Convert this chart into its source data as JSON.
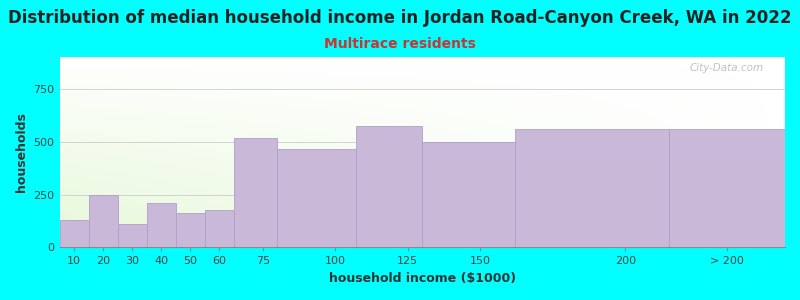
{
  "title": "Distribution of median household income in Jordan Road-Canyon Creek, WA in 2022",
  "subtitle": "Multirace residents",
  "xlabel": "household income ($1000)",
  "ylabel": "households",
  "background_color": "#00FFFF",
  "bar_color": "#c9b8d8",
  "bar_edge_color": "#b0a0c8",
  "categories": [
    "10",
    "20",
    "30",
    "40",
    "50",
    "60",
    "75",
    "100",
    "125",
    "150",
    "200",
    "> 200"
  ],
  "x_left": [
    5,
    15,
    25,
    35,
    45,
    55,
    65,
    80,
    107,
    130,
    162,
    215
  ],
  "x_right": [
    15,
    25,
    35,
    45,
    55,
    65,
    80,
    107,
    130,
    162,
    215,
    255
  ],
  "values": [
    130,
    250,
    110,
    210,
    165,
    175,
    515,
    465,
    575,
    500,
    560,
    560
  ],
  "ylim": [
    0,
    900
  ],
  "yticks": [
    0,
    250,
    500,
    750
  ],
  "xtick_positions": [
    10,
    20,
    30,
    40,
    50,
    60,
    75,
    100,
    125,
    150,
    200,
    235
  ],
  "xtick_labels": [
    "10",
    "20",
    "30",
    "40",
    "50",
    "60",
    "75",
    "100",
    "125",
    "150",
    "200",
    "> 200"
  ],
  "xlim": [
    5,
    255
  ],
  "watermark": "City-Data.com",
  "title_fontsize": 12,
  "subtitle_fontsize": 10,
  "subtitle_color": "#cc3333",
  "axis_label_fontsize": 9,
  "tick_fontsize": 8,
  "watermark_color": "#b0b8c0",
  "title_color": "#222222"
}
